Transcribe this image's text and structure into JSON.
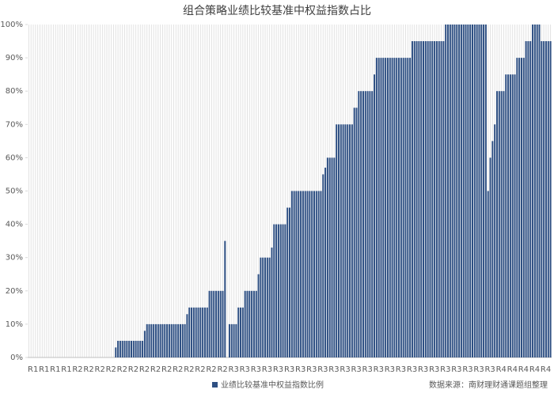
{
  "chart_data": {
    "type": "bar",
    "title": "组合策略业绩比较基准中权益指数占比",
    "legend_label": "业绩比较基准中权益指数比例",
    "source": "数据来源：南财理财通课题组整理",
    "color": "#2f5083",
    "ylim": [
      0,
      100
    ],
    "yticks": [
      {
        "value": 0,
        "label": "0%"
      },
      {
        "value": 10,
        "label": "10%"
      },
      {
        "value": 20,
        "label": "20%"
      },
      {
        "value": 30,
        "label": "30%"
      },
      {
        "value": 40,
        "label": "40%"
      },
      {
        "value": 50,
        "label": "50%"
      },
      {
        "value": 60,
        "label": "60%"
      },
      {
        "value": 70,
        "label": "70%"
      },
      {
        "value": 80,
        "label": "80%"
      },
      {
        "value": 90,
        "label": "90%"
      },
      {
        "value": 100,
        "label": "100%"
      }
    ],
    "categories": [
      "R1",
      null,
      null,
      null,
      null,
      "R1",
      null,
      null,
      null,
      null,
      "R1",
      null,
      null,
      null,
      null,
      "R1",
      null,
      null,
      null,
      null,
      "R2",
      null,
      null,
      null,
      null,
      "R2",
      null,
      null,
      null,
      null,
      "R2",
      null,
      null,
      null,
      null,
      "R2",
      null,
      null,
      null,
      null,
      "R2",
      null,
      null,
      null,
      null,
      "R2",
      null,
      null,
      null,
      null,
      "R2",
      null,
      null,
      null,
      null,
      "R2",
      null,
      null,
      null,
      null,
      "R2",
      null,
      null,
      null,
      null,
      "R2",
      null,
      null,
      null,
      null,
      "R2",
      null,
      null,
      null,
      null,
      "R2",
      null,
      null,
      null,
      null,
      "R2",
      null,
      null,
      null,
      null,
      "R2",
      null,
      null,
      null,
      null,
      "R3",
      null,
      null,
      null,
      null,
      "R3",
      null,
      null,
      null,
      null,
      "R3",
      null,
      null,
      null,
      null,
      "R3",
      null,
      null,
      null,
      null,
      "R3",
      null,
      null,
      null,
      null,
      "R3",
      null,
      null,
      null,
      null,
      "R3",
      null,
      null,
      null,
      null,
      "R3",
      null,
      null,
      null,
      null,
      "R3",
      null,
      null,
      null,
      null,
      "R3",
      null,
      null,
      null,
      null,
      "R3",
      null,
      null,
      null,
      null,
      "R3",
      null,
      null,
      null,
      null,
      "R3",
      null,
      null,
      null,
      null,
      "R3",
      null,
      null,
      null,
      null,
      "R3",
      null,
      null,
      null,
      null,
      "R3",
      null,
      null,
      null,
      null,
      "R3",
      null,
      null,
      null,
      null,
      "R3",
      null,
      null,
      null,
      null,
      "R3",
      null,
      null,
      null,
      null,
      "R3",
      null,
      null,
      null,
      null,
      "R3",
      null,
      null,
      null,
      null,
      "R3",
      null,
      null,
      null,
      null,
      "R3",
      null,
      null,
      null,
      null,
      "R3",
      null,
      null,
      null,
      null,
      "R4",
      null,
      null,
      null,
      null,
      "R4",
      null,
      null,
      null,
      null,
      "R4",
      null,
      null,
      null,
      null,
      "R4",
      null,
      null,
      null,
      null,
      "R4",
      null,
      null,
      null,
      null
    ],
    "values": [
      0,
      0,
      0,
      0,
      0,
      0,
      0,
      0,
      0,
      0,
      0,
      0,
      0,
      0,
      0,
      0,
      0,
      0,
      0,
      0,
      0,
      0,
      0,
      0,
      0,
      0,
      0,
      0,
      0,
      0,
      0,
      0,
      0,
      0,
      0,
      0,
      0,
      0,
      0,
      3,
      5,
      5,
      5,
      5,
      5,
      5,
      5,
      5,
      5,
      5,
      5,
      5,
      8,
      10,
      10,
      10,
      10,
      10,
      10,
      10,
      10,
      10,
      10,
      10,
      10,
      10,
      10,
      10,
      10,
      10,
      10,
      13,
      15,
      15,
      15,
      15,
      15,
      15,
      15,
      15,
      15,
      20,
      20,
      20,
      20,
      20,
      20,
      20,
      35,
      0,
      10,
      10,
      10,
      10,
      15,
      15,
      15,
      20,
      20,
      20,
      20,
      20,
      20,
      25,
      30,
      30,
      30,
      30,
      30,
      33,
      40,
      40,
      40,
      40,
      40,
      40,
      45,
      45,
      50,
      50,
      50,
      50,
      50,
      50,
      50,
      50,
      50,
      50,
      50,
      50,
      50,
      50,
      55,
      57,
      60,
      60,
      60,
      60,
      70,
      70,
      70,
      70,
      70,
      70,
      70,
      70,
      75,
      75,
      80,
      80,
      80,
      80,
      80,
      80,
      80,
      85,
      90,
      90,
      90,
      90,
      90,
      90,
      90,
      90,
      90,
      90,
      90,
      90,
      90,
      90,
      90,
      90,
      95,
      95,
      95,
      95,
      95,
      95,
      95,
      95,
      95,
      95,
      95,
      95,
      95,
      95,
      95,
      100,
      100,
      100,
      100,
      100,
      100,
      100,
      100,
      100,
      100,
      100,
      100,
      100,
      100,
      100,
      100,
      100,
      100,
      100,
      50,
      60,
      65,
      70,
      80,
      80,
      80,
      80,
      85,
      85,
      85,
      85,
      85,
      90,
      90,
      90,
      90,
      95,
      95,
      95,
      100,
      100,
      100,
      100,
      95,
      95,
      95,
      95,
      95
    ]
  }
}
